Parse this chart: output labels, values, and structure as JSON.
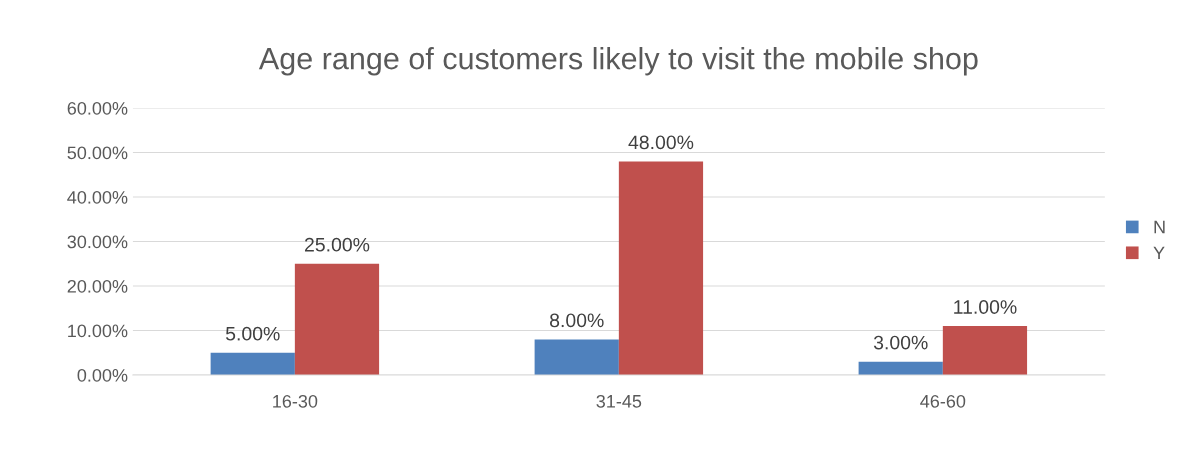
{
  "chart_data": {
    "type": "bar",
    "title": "Age range of customers likely to visit the mobile shop",
    "categories": [
      "16-30",
      "31-45",
      "46-60"
    ],
    "series": [
      {
        "name": "N",
        "color": "#4f81bd",
        "values": [
          5,
          8,
          3
        ],
        "value_labels": [
          "5.00%",
          "8.00%",
          "3.00%"
        ]
      },
      {
        "name": "Y",
        "color": "#c0504d",
        "values": [
          25,
          48,
          11
        ],
        "value_labels": [
          "25.00%",
          "48.00%",
          "11.00%"
        ]
      }
    ],
    "ylim": [
      0,
      60
    ],
    "yticks": [
      {
        "value": 0,
        "label": "0.00%"
      },
      {
        "value": 10,
        "label": "10.00%"
      },
      {
        "value": 20,
        "label": "20.00%"
      },
      {
        "value": 30,
        "label": "30.00%"
      },
      {
        "value": 40,
        "label": "40.00%"
      },
      {
        "value": 50,
        "label": "50.00%"
      },
      {
        "value": 60,
        "label": "60.00%"
      }
    ],
    "grid": "y",
    "legend": "right"
  }
}
